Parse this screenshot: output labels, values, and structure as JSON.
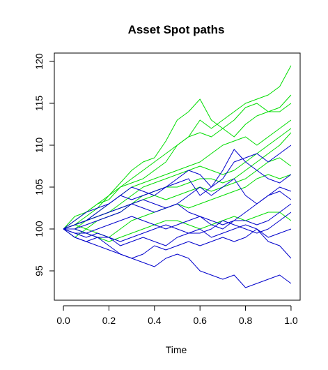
{
  "chart_data": {
    "type": "line",
    "title": "Asset Spot paths",
    "xlabel": "Time",
    "ylabel": "",
    "xlim": [
      -0.04,
      1.04
    ],
    "ylim": [
      91.5,
      121
    ],
    "xticks": [
      0.0,
      0.2,
      0.4,
      0.6,
      0.8,
      1.0
    ],
    "xtick_labels": [
      "0.0",
      "0.2",
      "0.4",
      "0.6",
      "0.8",
      "1.0"
    ],
    "yticks": [
      95,
      100,
      105,
      110,
      115,
      120
    ],
    "ytick_labels": [
      "95",
      "100",
      "105",
      "110",
      "115",
      "120"
    ],
    "grid": false,
    "legend": "none",
    "colors": {
      "green": "#00dd00",
      "blue": "#0000cc"
    },
    "x": [
      0,
      0.05,
      0.1,
      0.15,
      0.2,
      0.25,
      0.3,
      0.35,
      0.4,
      0.45,
      0.5,
      0.55,
      0.6,
      0.65,
      0.7,
      0.75,
      0.8,
      0.85,
      0.9,
      0.95,
      1.0
    ],
    "series": [
      {
        "color": "green",
        "values": [
          100,
          101.5,
          102,
          103,
          104,
          105,
          106,
          107,
          108,
          109,
          110,
          111,
          113,
          112,
          113,
          114,
          115,
          115.5,
          116,
          117,
          119.5
        ]
      },
      {
        "color": "green",
        "values": [
          100,
          100.5,
          101.5,
          102.5,
          104,
          105.5,
          107,
          108,
          108.5,
          110.5,
          113,
          114,
          115.5,
          113,
          112,
          111,
          112.5,
          113.5,
          114,
          114.5,
          116
        ]
      },
      {
        "color": "green",
        "values": [
          100,
          101,
          102,
          103,
          103.5,
          105,
          105.5,
          106,
          107,
          108,
          110,
          111,
          111.5,
          111,
          112,
          113,
          114.5,
          115,
          114,
          114,
          115
        ]
      },
      {
        "color": "green",
        "values": [
          100,
          100,
          101,
          102,
          103,
          104,
          105,
          105.5,
          106,
          106.5,
          107,
          107.5,
          108,
          109,
          110,
          110.5,
          111,
          110,
          111,
          112,
          113
        ]
      },
      {
        "color": "green",
        "values": [
          100,
          100.5,
          101,
          101.5,
          102,
          103,
          104,
          105,
          105.5,
          106,
          106.5,
          107,
          107.5,
          107,
          106.5,
          107,
          108,
          109,
          110,
          111,
          112
        ]
      },
      {
        "color": "green",
        "values": [
          100,
          100.5,
          101,
          101.5,
          102,
          102.5,
          103,
          104,
          104.5,
          105,
          105,
          105.5,
          106,
          106,
          105.5,
          106,
          107,
          108,
          109,
          110,
          111.5
        ]
      },
      {
        "color": "green",
        "values": [
          100,
          99,
          100,
          101,
          101.5,
          102,
          103,
          103.5,
          104,
          103.5,
          104,
          104.5,
          105,
          104.5,
          105,
          105.5,
          106,
          107,
          108,
          108.5,
          107.5
        ]
      },
      {
        "color": "green",
        "values": [
          100,
          100.5,
          100,
          99.5,
          99,
          100,
          101,
          101.5,
          102,
          102.5,
          103,
          102.5,
          103,
          103.5,
          104,
          104.5,
          105,
          106,
          106.5,
          106,
          106.5
        ]
      },
      {
        "color": "green",
        "values": [
          100,
          100,
          99.5,
          99,
          98.5,
          99,
          99.5,
          100,
          100.5,
          101,
          101,
          100.5,
          100,
          100.5,
          101,
          101.5,
          101,
          101.5,
          102,
          102,
          101
        ]
      },
      {
        "color": "blue",
        "values": [
          100,
          100.5,
          101,
          102,
          103,
          104,
          105,
          104.5,
          104,
          105,
          106,
          107,
          106.5,
          105,
          106,
          108,
          108.5,
          109,
          108,
          109,
          110
        ]
      },
      {
        "color": "blue",
        "values": [
          100,
          101,
          102,
          102.5,
          103,
          104,
          103.5,
          104,
          104.5,
          105,
          105.5,
          106,
          104,
          105,
          107,
          109.5,
          108,
          107,
          106,
          105.5,
          106.5
        ]
      },
      {
        "color": "blue",
        "values": [
          100,
          100.5,
          101,
          101.5,
          102,
          102.5,
          103,
          103.5,
          103,
          102.5,
          103,
          104,
          105,
          104,
          105,
          106,
          104,
          103,
          104,
          105,
          104.5
        ]
      },
      {
        "color": "blue",
        "values": [
          100,
          100,
          100.5,
          101,
          101.5,
          102,
          103,
          102.5,
          102,
          102.5,
          103,
          102,
          101.5,
          101,
          100.5,
          101,
          102,
          103,
          104,
          104.5,
          103.5
        ]
      },
      {
        "color": "blue",
        "values": [
          100,
          99.5,
          99.5,
          100,
          100.5,
          101,
          101.5,
          101,
          100.5,
          100,
          100.5,
          101,
          101.5,
          100.5,
          100,
          101,
          101,
          100.5,
          101,
          102,
          103
        ]
      },
      {
        "color": "blue",
        "values": [
          100,
          100,
          99.5,
          99,
          99,
          98.5,
          99,
          99.5,
          100,
          100.5,
          100,
          99.5,
          99.5,
          100,
          101,
          100.5,
          100,
          99.5,
          100,
          101,
          102
        ]
      },
      {
        "color": "blue",
        "values": [
          100,
          99.5,
          99,
          99.5,
          99,
          98,
          98.5,
          99,
          98.5,
          98,
          99,
          99.5,
          100,
          99,
          99.5,
          100,
          100.5,
          100,
          99,
          99.5,
          100
        ]
      },
      {
        "color": "blue",
        "values": [
          100,
          99,
          98.5,
          99,
          98,
          97,
          96.5,
          97,
          98,
          97.5,
          98,
          98.5,
          98,
          98.5,
          99,
          98.5,
          99,
          100,
          98.5,
          98,
          96.5
        ]
      },
      {
        "color": "blue",
        "values": [
          100,
          99,
          98.5,
          98,
          97.5,
          97,
          96.5,
          96,
          95.5,
          96.5,
          97,
          96.5,
          95,
          94.5,
          94,
          94.5,
          93,
          93.5,
          94,
          94.5,
          93.5
        ]
      }
    ]
  }
}
